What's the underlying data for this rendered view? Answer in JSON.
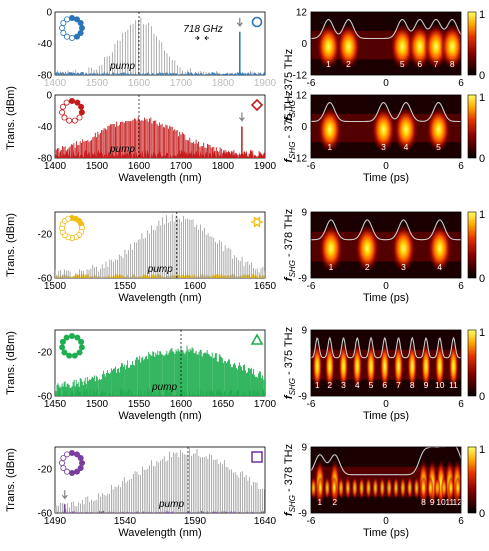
{
  "colors": {
    "blue": "#2b74b8",
    "red": "#c41a1a",
    "yellow": "#f0bd16",
    "green": "#1fae4f",
    "purple": "#7a3d9e",
    "grey": "#7f7f7f"
  },
  "left_shared_ylabel": "Trans. (dBm)",
  "right_shared_ylabel_main": "f",
  "right_shared_ylabel_sub": "SHG",
  "colorbar_max_label": "1",
  "colorbar_min_label": "0",
  "chart_data": [
    {
      "type": "line",
      "id": "spec1",
      "xlabel": "",
      "xlim": [
        1400,
        1900
      ],
      "ylim": [
        -80,
        0
      ],
      "xticks": [
        "1400",
        "1500",
        "1600",
        "1700",
        "1800",
        "1900"
      ],
      "yticks": [
        "0",
        "-40",
        "-80"
      ],
      "annotation": "718 GHz",
      "pump_label": "pump",
      "marker_shape": "circle",
      "color": "#2b74b8",
      "ring_active_count": 6,
      "ring_total": 12
    },
    {
      "type": "line",
      "id": "spec2",
      "xlabel": "Wavelength (nm)",
      "xlim": [
        1400,
        1900
      ],
      "ylim": [
        -80,
        0
      ],
      "xticks": [
        "1400",
        "1500",
        "1600",
        "1700",
        "1800",
        "1900"
      ],
      "yticks": [
        "0",
        "-40",
        "-80"
      ],
      "pump_label": "pump",
      "marker_shape": "diamond",
      "color": "#c41a1a",
      "ring_active_count": 4,
      "ring_total": 11
    },
    {
      "type": "line",
      "id": "spec3",
      "xlabel": "Wavelength (nm)",
      "xlim": [
        1500,
        1650
      ],
      "ylim": [
        -60,
        0
      ],
      "xticks": [
        "1500",
        "1550",
        "1600",
        "1650"
      ],
      "yticks": [
        "-20",
        "-60"
      ],
      "pump_label": "pump",
      "marker_shape": "star",
      "color": "#f0bd16",
      "ring_active_count": 4,
      "ring_total": 16
    },
    {
      "type": "line",
      "id": "spec4",
      "xlabel": "Wavelength (nm)",
      "xlim": [
        1450,
        1700
      ],
      "ylim": [
        -60,
        0
      ],
      "xticks": [
        "1450",
        "1500",
        "1550",
        "1600",
        "1650",
        "1700"
      ],
      "yticks": [
        "-20",
        "-60"
      ],
      "pump_label": "pump",
      "marker_shape": "triangle",
      "color": "#1fae4f",
      "ring_active_count": 11,
      "ring_total": 11
    },
    {
      "type": "line",
      "id": "spec5",
      "xlabel": "Wavelength (nm)",
      "xlim": [
        1490,
        1640
      ],
      "ylim": [
        -60,
        0
      ],
      "xticks": [
        "1490",
        "1540",
        "1590",
        "1640"
      ],
      "yticks": [
        "-20",
        "-60"
      ],
      "pump_label": "pump",
      "marker_shape": "square",
      "color": "#7a3d9e",
      "ring_active_count": 7,
      "ring_total": 12
    },
    {
      "type": "heatmap",
      "id": "map1",
      "xlim": [
        -6,
        6
      ],
      "ylim": [
        -12,
        12
      ],
      "xticks": [
        "-6",
        "0",
        "6"
      ],
      "yticks": [
        "12",
        "0",
        "-12"
      ],
      "xlabel": "",
      "offset_label": "- 375 THz",
      "pulse_numbers": [
        "1",
        "2",
        "5",
        "6",
        "7",
        "8"
      ]
    },
    {
      "type": "heatmap",
      "id": "map2",
      "xlim": [
        -6,
        6
      ],
      "ylim": [
        -12,
        12
      ],
      "xticks": [
        "-6",
        "0",
        "6"
      ],
      "yticks": [
        "12",
        "0",
        "-12"
      ],
      "xlabel": "Time (ps)",
      "offset_label": "- 375 THz",
      "pulse_numbers": [
        "1",
        "3",
        "4",
        "5"
      ]
    },
    {
      "type": "heatmap",
      "id": "map3",
      "xlim": [
        -6,
        6
      ],
      "ylim": [
        -9,
        9
      ],
      "xticks": [
        "-6",
        "0",
        "6"
      ],
      "yticks": [
        "9",
        "-9"
      ],
      "xlabel": "Time (ps)",
      "offset_label": "- 378 THz",
      "pulse_numbers": [
        "1",
        "2",
        "3",
        "4"
      ]
    },
    {
      "type": "heatmap",
      "id": "map4",
      "xlim": [
        -6,
        6
      ],
      "ylim": [
        -9,
        9
      ],
      "xticks": [
        "-6",
        "0",
        "6"
      ],
      "yticks": [
        "9",
        "-9"
      ],
      "xlabel": "Time (ps)",
      "offset_label": "- 375 THz",
      "pulse_numbers": [
        "1",
        "2",
        "3",
        "4",
        "5",
        "6",
        "7",
        "8",
        "9",
        "10",
        "11"
      ]
    },
    {
      "type": "heatmap",
      "id": "map5",
      "xlim": [
        -6,
        6
      ],
      "ylim": [
        -9,
        9
      ],
      "xticks": [
        "-6",
        "0",
        "6"
      ],
      "yticks": [
        "9",
        "-9"
      ],
      "xlabel": "Time (ps)",
      "offset_label": "- 378 THz",
      "pulse_numbers": [
        "1",
        "2",
        "8",
        "9",
        "10",
        "11",
        "12"
      ]
    }
  ]
}
